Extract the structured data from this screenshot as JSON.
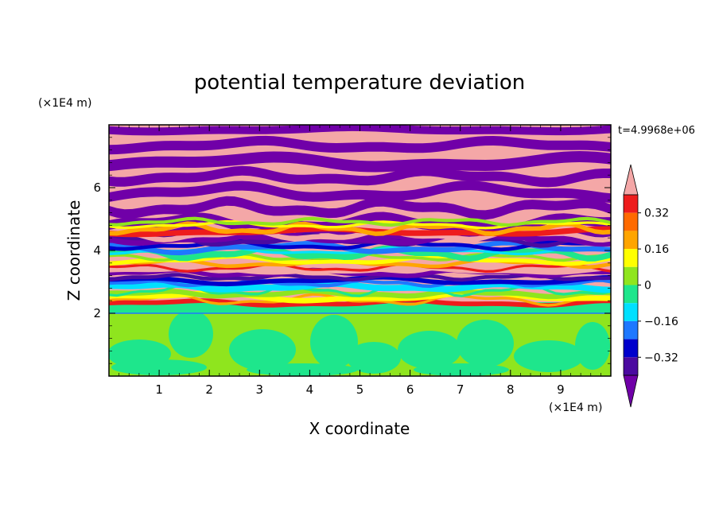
{
  "chart_data": {
    "type": "heatmap",
    "title": "potential temperature deviation",
    "xlabel": "X coordinate",
    "ylabel": "Z coordinate",
    "x_unit": "(×1E4 m)",
    "y_unit": "(×1E4 m)",
    "time_label": "t=4.9968e+06",
    "xlim": [
      0,
      10
    ],
    "ylim": [
      0,
      8
    ],
    "x_ticks": [
      1,
      2,
      3,
      4,
      5,
      6,
      7,
      8,
      9
    ],
    "y_ticks": [
      2,
      4,
      6
    ],
    "x_tick_labels": [
      "1",
      "2",
      "3",
      "4",
      "5",
      "6",
      "7",
      "8",
      "9"
    ],
    "y_tick_labels": [
      "2",
      "4",
      "6"
    ],
    "colorbar": {
      "levels": [
        -0.4,
        -0.32,
        -0.24,
        -0.16,
        -0.08,
        0,
        0.08,
        0.16,
        0.24,
        0.32,
        0.4
      ],
      "tick_values": [
        0.32,
        0.16,
        0,
        -0.16,
        -0.32
      ],
      "tick_labels": [
        "0.32",
        "0.16",
        "0",
        "−0.16",
        "−0.32"
      ],
      "colors_high_to_low": [
        "#f4a7a7",
        "#ee1c1c",
        "#ff6a00",
        "#ffa500",
        "#ffff00",
        "#8fe51e",
        "#1ee68c",
        "#00e0ff",
        "#1e78ff",
        "#0000cc",
        "#4b0aa0",
        "#7000a8"
      ],
      "extend": "both"
    },
    "fields": {
      "upper_layer_colors": [
        "#f4a7a7",
        "#7000a8"
      ],
      "lower_layer_colors": [
        "#8fe51e",
        "#1ee68c"
      ],
      "mixed_layer_z_range": [
        2.3,
        5.0
      ],
      "interface_z": 2.0
    }
  }
}
